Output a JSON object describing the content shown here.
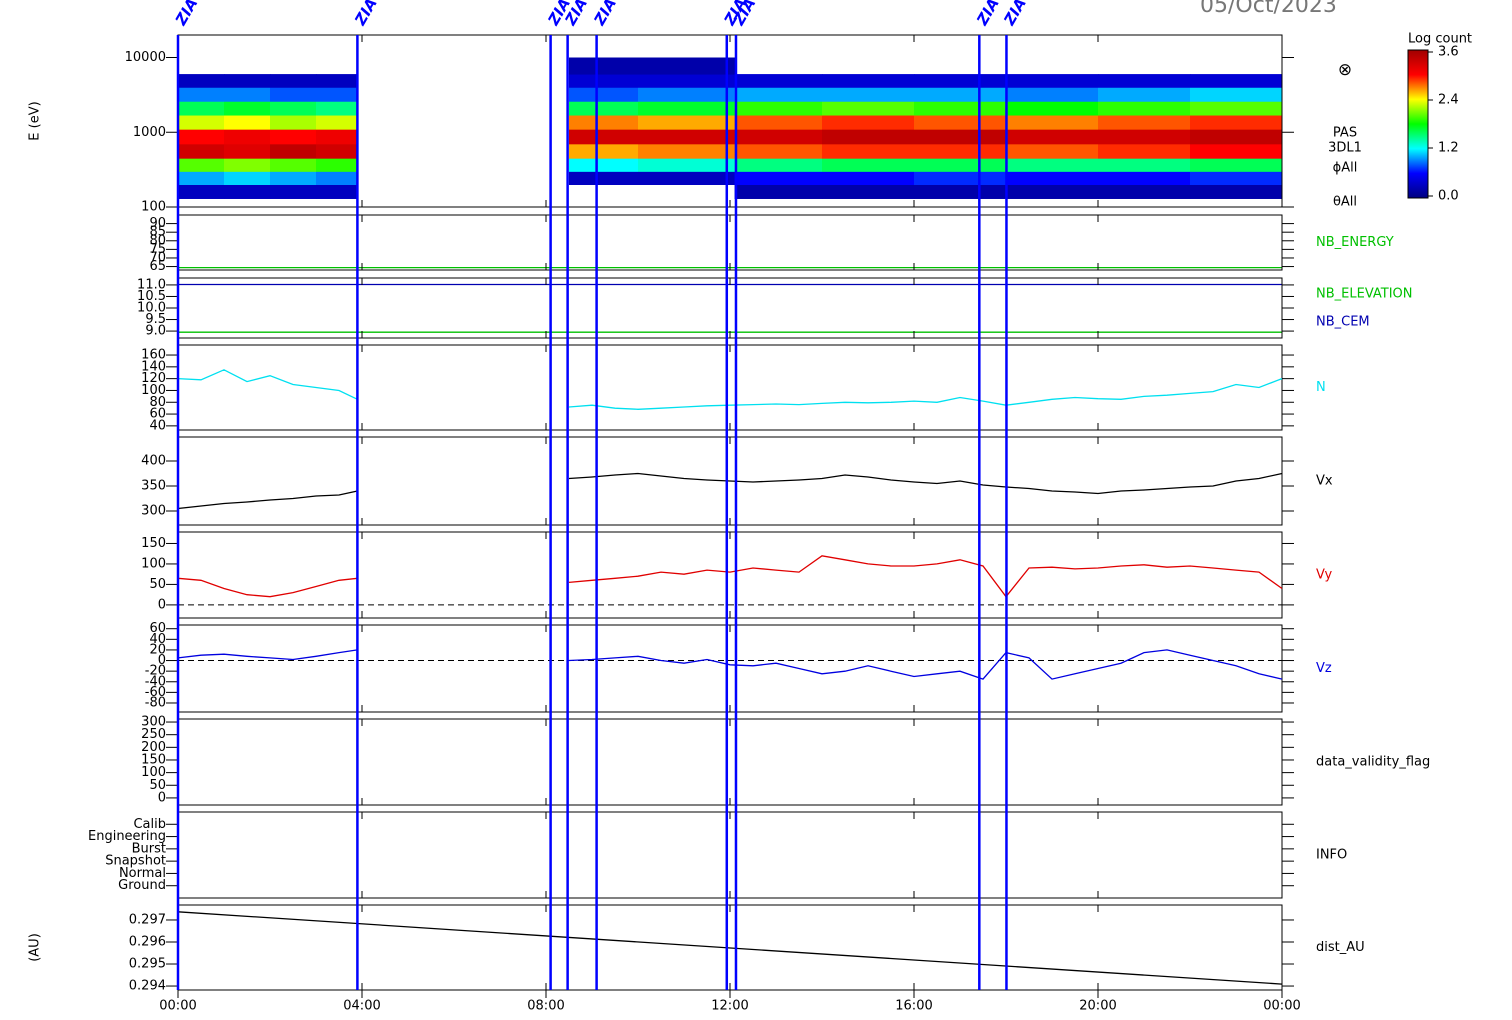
{
  "date": "05/Oct/2023",
  "events": {
    "color": "#0000ff",
    "x": [
      0,
      3.9,
      8.1,
      8.47,
      9.1,
      11.93,
      12.13,
      17.42,
      18.01
    ],
    "labels": [
      "ZIA",
      "ZIA",
      "ZIA",
      "ZIA",
      "ZIA",
      "ZIA",
      "ZIA",
      "ZIA",
      "ZIA"
    ]
  },
  "chart_data": [
    {
      "type": "heatmap",
      "ylabel": "E (eV)",
      "log": true,
      "xlim": [
        0,
        24
      ],
      "ylim": [
        100,
        20000
      ],
      "yticks": [
        100,
        1000,
        10000
      ],
      "x_edges": [
        0,
        1,
        2,
        3,
        3.9,
        8.5,
        10,
        12.1,
        14,
        16,
        18,
        20,
        22,
        24
      ],
      "y_edges": [
        130,
        200,
        300,
        450,
        700,
        1100,
        1700,
        2600,
        4000,
        6000,
        10000
      ],
      "z": [
        [
          0.3,
          1.0,
          2.0,
          3.3,
          3.0,
          2.3,
          1.6,
          0.9,
          0.3,
          null
        ],
        [
          0.3,
          1.1,
          2.1,
          3.2,
          3.1,
          2.4,
          1.7,
          0.9,
          0.3,
          null
        ],
        [
          0.3,
          1.0,
          2.0,
          3.4,
          3.0,
          2.2,
          1.6,
          0.8,
          0.3,
          null
        ],
        [
          0.3,
          0.9,
          1.9,
          3.3,
          3.1,
          2.3,
          1.5,
          0.8,
          0.3,
          null
        ],
        [
          null,
          null,
          null,
          null,
          null,
          null,
          null,
          null,
          null,
          null
        ],
        [
          null,
          0.3,
          1.2,
          2.6,
          3.3,
          2.7,
          1.6,
          0.8,
          0.4,
          0.2
        ],
        [
          null,
          0.3,
          1.3,
          2.7,
          3.3,
          2.6,
          1.7,
          0.9,
          0.4,
          0.2
        ],
        [
          0.2,
          0.6,
          1.5,
          2.8,
          3.3,
          2.8,
          1.9,
          1.0,
          0.4,
          null
        ],
        [
          0.2,
          0.6,
          1.6,
          2.9,
          3.4,
          2.9,
          2.0,
          1.0,
          0.4,
          null
        ],
        [
          0.2,
          0.7,
          1.6,
          2.9,
          3.4,
          2.8,
          1.9,
          1.0,
          0.4,
          null
        ],
        [
          0.2,
          0.6,
          1.5,
          2.8,
          3.3,
          2.7,
          1.8,
          0.9,
          0.4,
          null
        ],
        [
          0.2,
          0.6,
          1.5,
          2.9,
          3.3,
          2.8,
          1.9,
          1.0,
          0.4,
          null
        ],
        [
          0.2,
          0.7,
          1.6,
          3.0,
          3.4,
          2.9,
          2.0,
          1.1,
          0.4,
          null
        ]
      ],
      "colorscale": [
        "#00007f",
        "#0000ff",
        "#00ffff",
        "#00ff00",
        "#ffff00",
        "#ff0000",
        "#a00000"
      ],
      "colorbar": {
        "title": "Log count",
        "zlim": [
          0,
          3.6
        ],
        "ticks": [
          {
            "value": 0,
            "label": "0.0"
          },
          1.2,
          2.4,
          3.6
        ]
      },
      "side_labels": [
        "⊗",
        "PAS",
        "3DL1",
        "ϕAll",
        "θAll"
      ]
    },
    {
      "type": "line",
      "xlim": [
        0,
        24
      ],
      "ylim": [
        63,
        95
      ],
      "yticks": [
        65,
        70,
        75,
        80,
        85,
        90
      ],
      "x": [
        0,
        24
      ],
      "series": [
        {
          "name": "NB_ENERGY",
          "color": "#00c000",
          "values": [
            64.4,
            64.4
          ]
        }
      ]
    },
    {
      "type": "line",
      "xlim": [
        0,
        24
      ],
      "ylim": [
        8.7,
        11.3
      ],
      "yticks": [
        {
          "value": 9,
          "label": "9.0"
        },
        9.5,
        {
          "value": 10,
          "label": "10.0"
        },
        10.5,
        {
          "value": 11,
          "label": "11.0"
        }
      ],
      "x": [
        0,
        24
      ],
      "series": [
        {
          "name": "NB_ELEVATION",
          "color": "#00c000",
          "values": [
            8.95,
            8.95
          ]
        },
        {
          "name": "NB_CEM",
          "color": "#0000b0",
          "values": [
            11.02,
            11.02
          ]
        }
      ]
    },
    {
      "type": "line",
      "xlim": [
        0,
        24
      ],
      "ylim": [
        33,
        177
      ],
      "yticks": [
        40,
        60,
        80,
        100,
        120,
        140,
        160
      ],
      "x": [
        0,
        0.5,
        1,
        1.5,
        2,
        2.5,
        3,
        3.5,
        3.9,
        6,
        8.5,
        9,
        9.5,
        10,
        10.5,
        11,
        11.5,
        12,
        12.5,
        13,
        13.5,
        14,
        14.5,
        15,
        15.5,
        16,
        16.5,
        17,
        17.5,
        18,
        18.5,
        19,
        19.5,
        20,
        20.5,
        21,
        21.5,
        22,
        22.5,
        23,
        23.5,
        24
      ],
      "series": [
        {
          "name": "N",
          "color": "#00e0f0",
          "values": [
            120,
            118,
            135,
            115,
            125,
            110,
            105,
            100,
            85,
            null,
            72,
            75,
            70,
            68,
            70,
            72,
            74,
            75,
            76,
            77,
            76,
            78,
            80,
            79,
            80,
            82,
            80,
            88,
            82,
            75,
            80,
            85,
            88,
            86,
            85,
            90,
            92,
            95,
            98,
            110,
            105,
            120
          ]
        }
      ]
    },
    {
      "type": "line",
      "xlim": [
        0,
        24
      ],
      "ylim": [
        272,
        448
      ],
      "yticks": [
        300,
        350,
        400
      ],
      "x": [
        0,
        0.5,
        1,
        1.5,
        2,
        2.5,
        3,
        3.5,
        3.9,
        6,
        8.5,
        9,
        9.5,
        10,
        10.5,
        11,
        11.5,
        12,
        12.5,
        13,
        13.5,
        14,
        14.5,
        15,
        15.5,
        16,
        16.5,
        17,
        17.5,
        18,
        18.5,
        19,
        19.5,
        20,
        20.5,
        21,
        21.5,
        22,
        22.5,
        23,
        23.5,
        24
      ],
      "series": [
        {
          "name": "Vx",
          "color": "#000000",
          "values": [
            305,
            310,
            315,
            318,
            322,
            325,
            330,
            332,
            340,
            null,
            365,
            368,
            372,
            375,
            370,
            365,
            362,
            360,
            358,
            360,
            362,
            365,
            372,
            368,
            362,
            358,
            355,
            360,
            352,
            348,
            345,
            340,
            338,
            335,
            340,
            342,
            345,
            348,
            350,
            360,
            365,
            375
          ]
        }
      ]
    },
    {
      "type": "line",
      "xlim": [
        0,
        24
      ],
      "ylim": [
        -32,
        178
      ],
      "yticks": [
        0,
        50,
        100,
        150
      ],
      "zero_line": true,
      "x": [
        0,
        0.5,
        1,
        1.5,
        2,
        2.5,
        3,
        3.5,
        3.9,
        6,
        8.5,
        9,
        9.5,
        10,
        10.5,
        11,
        11.5,
        12,
        12.5,
        13,
        13.5,
        14,
        14.5,
        15,
        15.5,
        16,
        16.5,
        17,
        17.5,
        18,
        18.5,
        19,
        19.5,
        20,
        20.5,
        21,
        21.5,
        22,
        22.5,
        23,
        23.5,
        24
      ],
      "series": [
        {
          "name": "Vy",
          "color": "#e00000",
          "values": [
            65,
            60,
            40,
            25,
            20,
            30,
            45,
            60,
            65,
            null,
            55,
            60,
            65,
            70,
            80,
            75,
            85,
            80,
            90,
            85,
            80,
            120,
            110,
            100,
            95,
            95,
            100,
            110,
            95,
            20,
            90,
            92,
            88,
            90,
            95,
            98,
            92,
            95,
            90,
            85,
            80,
            40
          ]
        }
      ]
    },
    {
      "type": "line",
      "xlim": [
        0,
        24
      ],
      "ylim": [
        -97,
        67
      ],
      "yticks": [
        -80,
        -60,
        -40,
        -20,
        0,
        20,
        40,
        60
      ],
      "zero_line": true,
      "x": [
        0,
        0.5,
        1,
        1.5,
        2,
        2.5,
        3,
        3.5,
        3.9,
        6,
        8.5,
        9,
        9.5,
        10,
        10.5,
        11,
        11.5,
        12,
        12.5,
        13,
        13.5,
        14,
        14.5,
        15,
        15.5,
        16,
        16.5,
        17,
        17.5,
        18,
        18.5,
        19,
        19.5,
        20,
        20.5,
        21,
        21.5,
        22,
        22.5,
        23,
        23.5,
        24
      ],
      "series": [
        {
          "name": "Vz",
          "color": "#0000e0",
          "values": [
            5,
            10,
            12,
            8,
            5,
            2,
            8,
            15,
            20,
            null,
            0,
            2,
            5,
            8,
            0,
            -5,
            2,
            -8,
            -10,
            -5,
            -15,
            -25,
            -20,
            -10,
            -20,
            -30,
            -25,
            -20,
            -35,
            15,
            5,
            -35,
            -25,
            -15,
            -5,
            15,
            20,
            10,
            0,
            -10,
            -25,
            -35
          ]
        }
      ]
    },
    {
      "type": "line",
      "label": "data_validity_flag",
      "xlim": [
        0,
        24
      ],
      "ylim": [
        -28,
        312
      ],
      "yticks": [
        0,
        50,
        100,
        150,
        200,
        250,
        300
      ]
    },
    {
      "type": "category_axis",
      "label": "INFO",
      "xlim": [
        0,
        24
      ],
      "categories": [
        "Calib",
        "Engineering",
        "Burst",
        "Snapshot",
        "Normal",
        "Ground"
      ]
    },
    {
      "type": "line",
      "ylabel": "(AU)",
      "xlim": [
        0,
        24
      ],
      "ylim": [
        0.29382,
        0.29768
      ],
      "yticks": [
        0.294,
        0.295,
        0.296,
        0.297
      ],
      "x": [
        0,
        24
      ],
      "series": [
        {
          "name": "dist_AU",
          "color": "#000000",
          "values": [
            0.29737,
            0.29409
          ]
        }
      ],
      "xticks": [
        {
          "value": 0,
          "label": "00:00"
        },
        {
          "value": 4,
          "label": "04:00"
        },
        {
          "value": 8,
          "label": "08:00"
        },
        {
          "value": 12,
          "label": "12:00"
        },
        {
          "value": 16,
          "label": "16:00"
        },
        {
          "value": 20,
          "label": "20:00"
        },
        {
          "value": 24,
          "label": "00:00"
        }
      ]
    }
  ]
}
